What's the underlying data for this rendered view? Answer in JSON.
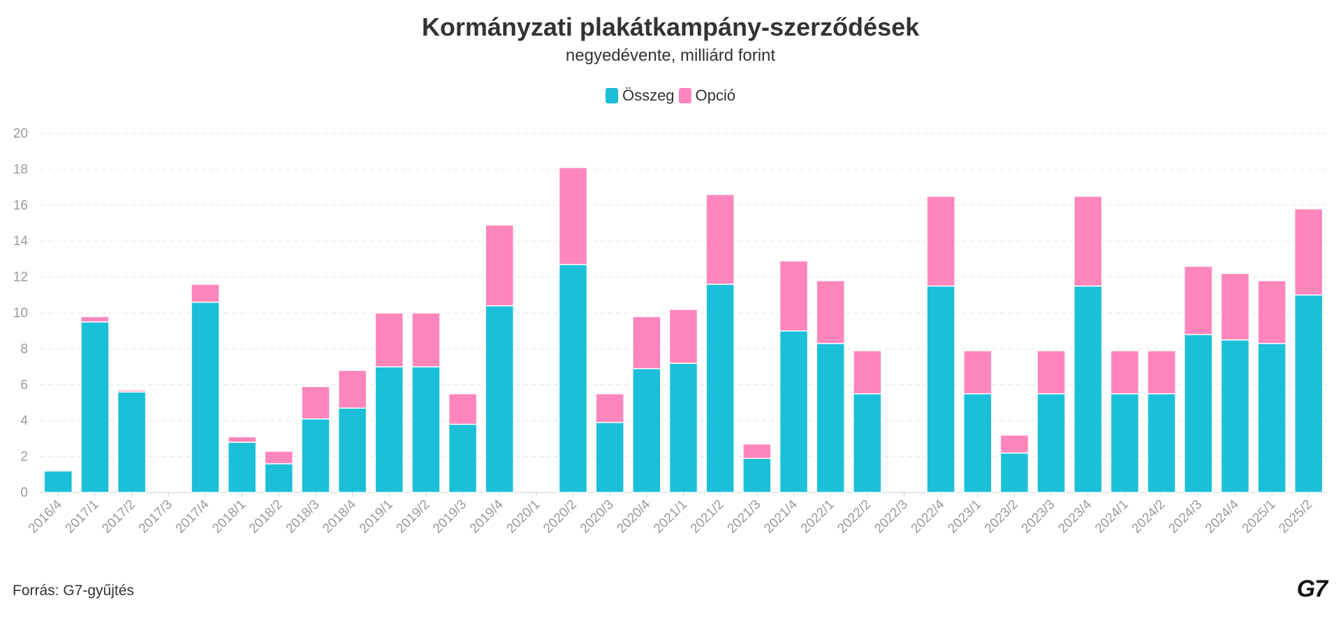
{
  "chart_data": {
    "type": "bar",
    "stacked": true,
    "title": "Kormányzati plakátkampány-szerződések",
    "subtitle": "negyedévente, milliárd forint",
    "xlabel": "",
    "ylabel": "",
    "ylim": [
      0,
      20
    ],
    "yticks": [
      "0",
      "2",
      "4",
      "6",
      "8",
      "10",
      "12",
      "14",
      "16",
      "18",
      "20"
    ],
    "grid": true,
    "legend_position": "top-center",
    "categories": [
      "2016/4",
      "2017/1",
      "2017/2",
      "2017/3",
      "2017/4",
      "2018/1",
      "2018/2",
      "2018/3",
      "2018/4",
      "2019/1",
      "2019/2",
      "2019/3",
      "2019/4",
      "2020/1",
      "2020/2",
      "2020/3",
      "2020/4",
      "2021/1",
      "2021/2",
      "2021/3",
      "2021/4",
      "2022/1",
      "2022/2",
      "2022/3",
      "2022/4",
      "2023/1",
      "2023/2",
      "2023/3",
      "2023/4",
      "2024/1",
      "2024/2",
      "2024/3",
      "2024/4",
      "2025/1",
      "2025/2"
    ],
    "series": [
      {
        "name": "Összeg",
        "color": "#1bbfd8",
        "values": [
          1.2,
          9.5,
          5.6,
          0,
          10.6,
          2.8,
          1.6,
          4.1,
          4.7,
          7.0,
          7.0,
          3.8,
          10.4,
          0,
          12.7,
          3.9,
          6.9,
          7.2,
          11.6,
          1.9,
          9.0,
          8.3,
          5.5,
          0,
          11.5,
          5.5,
          2.2,
          5.5,
          11.5,
          5.5,
          5.5,
          8.8,
          8.5,
          8.3,
          11.0
        ]
      },
      {
        "name": "Opció",
        "color": "#ff85bd",
        "values": [
          0,
          0.3,
          0.1,
          0,
          1.0,
          0.3,
          0.7,
          1.8,
          2.1,
          3.0,
          3.0,
          1.7,
          4.5,
          0,
          5.4,
          1.6,
          2.9,
          3.0,
          5.0,
          0.8,
          3.9,
          3.5,
          2.4,
          0,
          5.0,
          2.4,
          1.0,
          2.4,
          5.0,
          2.4,
          2.4,
          3.8,
          3.7,
          3.5,
          4.8
        ]
      }
    ]
  },
  "source": "Forrás: G7-gyűjtés",
  "logo": "G7"
}
